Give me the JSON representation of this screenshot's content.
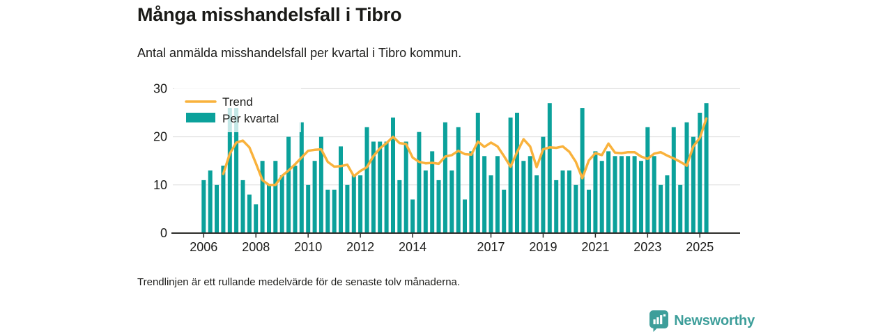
{
  "page": {
    "title": "Många misshandelsfall i Tibro",
    "subtitle": "Antal anmälda misshandelsfall per kvartal i Tibro kommun.",
    "footnote": "Trendlinjen är ett rullande medelvärde för de senaste tolv månaderna.",
    "brand": "Newsworthy"
  },
  "legend": {
    "trend": "Trend",
    "bars": "Per kvartal"
  },
  "colors": {
    "bar": "#0ba19b",
    "trend": "#f9b23c",
    "grid": "#dcdcdc",
    "axis": "#2d2d2a",
    "text": "#1d1d1b",
    "brand": "#3d9e9a",
    "legend_overlay": "rgba(255,255,255,0.76)"
  },
  "chart_data": {
    "type": "bar",
    "title": "Många misshandelsfall i Tibro",
    "subtitle": "Antal anmälda misshandelsfall per kvartal i Tibro kommun.",
    "xlabel": "",
    "ylabel": "",
    "ylim": [
      0,
      30
    ],
    "y_ticks": [
      0,
      10,
      20,
      30
    ],
    "grid": "horizontal",
    "legend_position": "top-left",
    "start_period": "2006-Q1",
    "end_period": "2025-Q2",
    "x_ticks": [
      {
        "label": "2006",
        "quarter_index": 0
      },
      {
        "label": "2008",
        "quarter_index": 8
      },
      {
        "label": "2010",
        "quarter_index": 16
      },
      {
        "label": "2012",
        "quarter_index": 24
      },
      {
        "label": "2014",
        "quarter_index": 32
      },
      {
        "label": "2017",
        "quarter_index": 44
      },
      {
        "label": "2019",
        "quarter_index": 52
      },
      {
        "label": "2021",
        "quarter_index": 60
      },
      {
        "label": "2023",
        "quarter_index": 68
      },
      {
        "label": "2025",
        "quarter_index": 76
      }
    ],
    "series": [
      {
        "name": "Per kvartal",
        "type": "bar",
        "values": [
          11,
          13,
          10,
          14,
          26,
          26,
          11,
          8,
          6,
          15,
          10,
          15,
          12,
          20,
          14,
          23,
          10,
          15,
          20,
          9,
          9,
          18,
          10,
          12,
          12,
          22,
          19,
          19,
          19,
          24,
          11,
          19,
          7,
          21,
          13,
          17,
          11,
          23,
          13,
          22,
          7,
          17,
          25,
          16,
          12,
          16,
          9,
          24,
          25,
          15,
          16,
          12,
          20,
          27,
          11,
          13,
          13,
          10,
          26,
          9,
          17,
          15,
          17,
          16,
          16,
          16,
          16,
          15,
          22,
          16,
          10,
          12,
          22,
          10,
          23,
          20,
          25,
          27
        ]
      },
      {
        "name": "Trend",
        "type": "line",
        "start_index": 3,
        "values": [
          12.3,
          16.5,
          18.8,
          19.2,
          17.8,
          14.5,
          11.0,
          10.0,
          10.0,
          11.9,
          13.0,
          14.3,
          15.7,
          17.1,
          17.3,
          17.4,
          14.8,
          13.8,
          13.9,
          14.2,
          11.8,
          12.9,
          13.7,
          16.0,
          17.6,
          18.7,
          20.0,
          18.7,
          18.5,
          15.7,
          14.8,
          14.5,
          14.6,
          14.4,
          15.9,
          16.2,
          17.1,
          16.4,
          16.3,
          19.0,
          17.9,
          18.8,
          18.0,
          16.0,
          13.8,
          16.8,
          19.5,
          18.0,
          13.7,
          17.4,
          17.8,
          17.7,
          18.0,
          16.9,
          14.8,
          11.4,
          15.1,
          16.6,
          16.2,
          18.6,
          16.7,
          16.6,
          16.8,
          16.8,
          15.9,
          15.4,
          16.5,
          16.8,
          16.1,
          15.5,
          14.8,
          14.0,
          18.0,
          19.8,
          23.8
        ]
      }
    ]
  }
}
